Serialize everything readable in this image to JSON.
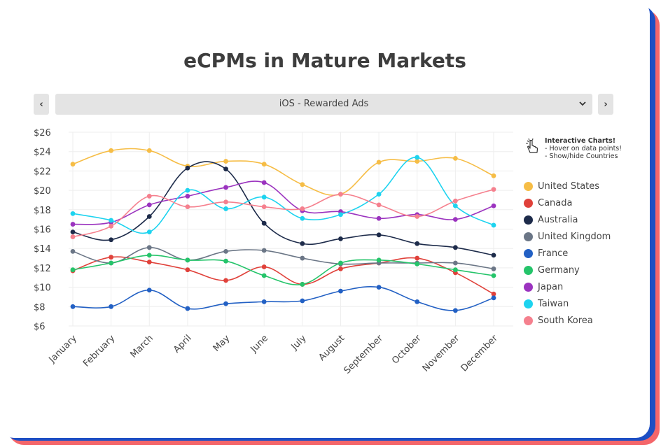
{
  "title": "eCPMs in Mature Markets",
  "selector": {
    "prev_label": "‹",
    "next_label": "›",
    "selected": "iOS - Rewarded Ads"
  },
  "hint": {
    "title": "Interactive Charts!",
    "line1": "- Hover on data points!",
    "line2": "- Show/hide Countries",
    "icon": "pointer-hand-icon"
  },
  "colors": {
    "frame_outer": "#f4666a",
    "frame_inner": "#1d4fc4",
    "grid": "#eeeeee"
  },
  "chart_data": {
    "type": "line",
    "title": "eCPMs in Mature Markets",
    "xlabel": "",
    "ylabel": "",
    "categories": [
      "January",
      "February",
      "March",
      "April",
      "May",
      "June",
      "July",
      "August",
      "September",
      "October",
      "November",
      "December"
    ],
    "y_ticks": [
      "$6",
      "$8",
      "$10",
      "$12",
      "$14",
      "$16",
      "$18",
      "$20",
      "$22",
      "$24",
      "$26"
    ],
    "ylim": [
      6,
      26
    ],
    "grid": true,
    "legend_position": "right",
    "series": [
      {
        "name": "United States",
        "color": "#f6bd46",
        "values": [
          22.7,
          24.1,
          24.1,
          22.5,
          23.0,
          22.7,
          20.6,
          19.6,
          22.9,
          23.0,
          23.3,
          21.5
        ]
      },
      {
        "name": "Canada",
        "color": "#e0413a",
        "values": [
          11.7,
          13.1,
          12.6,
          11.8,
          10.7,
          12.1,
          10.3,
          11.9,
          12.5,
          13.0,
          11.5,
          9.3
        ]
      },
      {
        "name": "Australia",
        "color": "#1d2b4a",
        "values": [
          15.7,
          14.9,
          17.3,
          22.3,
          22.2,
          16.6,
          14.5,
          15.0,
          15.4,
          14.5,
          14.1,
          13.3
        ]
      },
      {
        "name": "United Kingdom",
        "color": "#6b7686",
        "values": [
          13.7,
          12.5,
          14.1,
          12.8,
          13.7,
          13.8,
          13.0,
          12.4,
          12.5,
          12.5,
          12.5,
          11.9
        ]
      },
      {
        "name": "France",
        "color": "#2260c4",
        "values": [
          8.0,
          8.0,
          9.7,
          7.8,
          8.3,
          8.5,
          8.6,
          9.6,
          10.0,
          8.5,
          7.6,
          8.9
        ]
      },
      {
        "name": "Germany",
        "color": "#25c46a",
        "values": [
          11.8,
          12.5,
          13.3,
          12.8,
          12.7,
          11.2,
          10.3,
          12.5,
          12.8,
          12.4,
          11.8,
          11.2
        ]
      },
      {
        "name": "Japan",
        "color": "#9b33bf",
        "values": [
          16.5,
          16.7,
          18.5,
          19.4,
          20.3,
          20.8,
          17.9,
          17.8,
          17.1,
          17.5,
          17.0,
          18.4
        ]
      },
      {
        "name": "Taiwan",
        "color": "#1dd3ef",
        "values": [
          17.6,
          16.9,
          15.7,
          20.0,
          18.1,
          19.3,
          17.1,
          17.5,
          19.6,
          23.4,
          18.4,
          16.4
        ]
      },
      {
        "name": "South Korea",
        "color": "#f5808e",
        "values": [
          15.2,
          16.3,
          19.4,
          18.3,
          18.8,
          18.3,
          18.1,
          19.6,
          18.5,
          17.3,
          18.9,
          20.1
        ]
      }
    ]
  }
}
